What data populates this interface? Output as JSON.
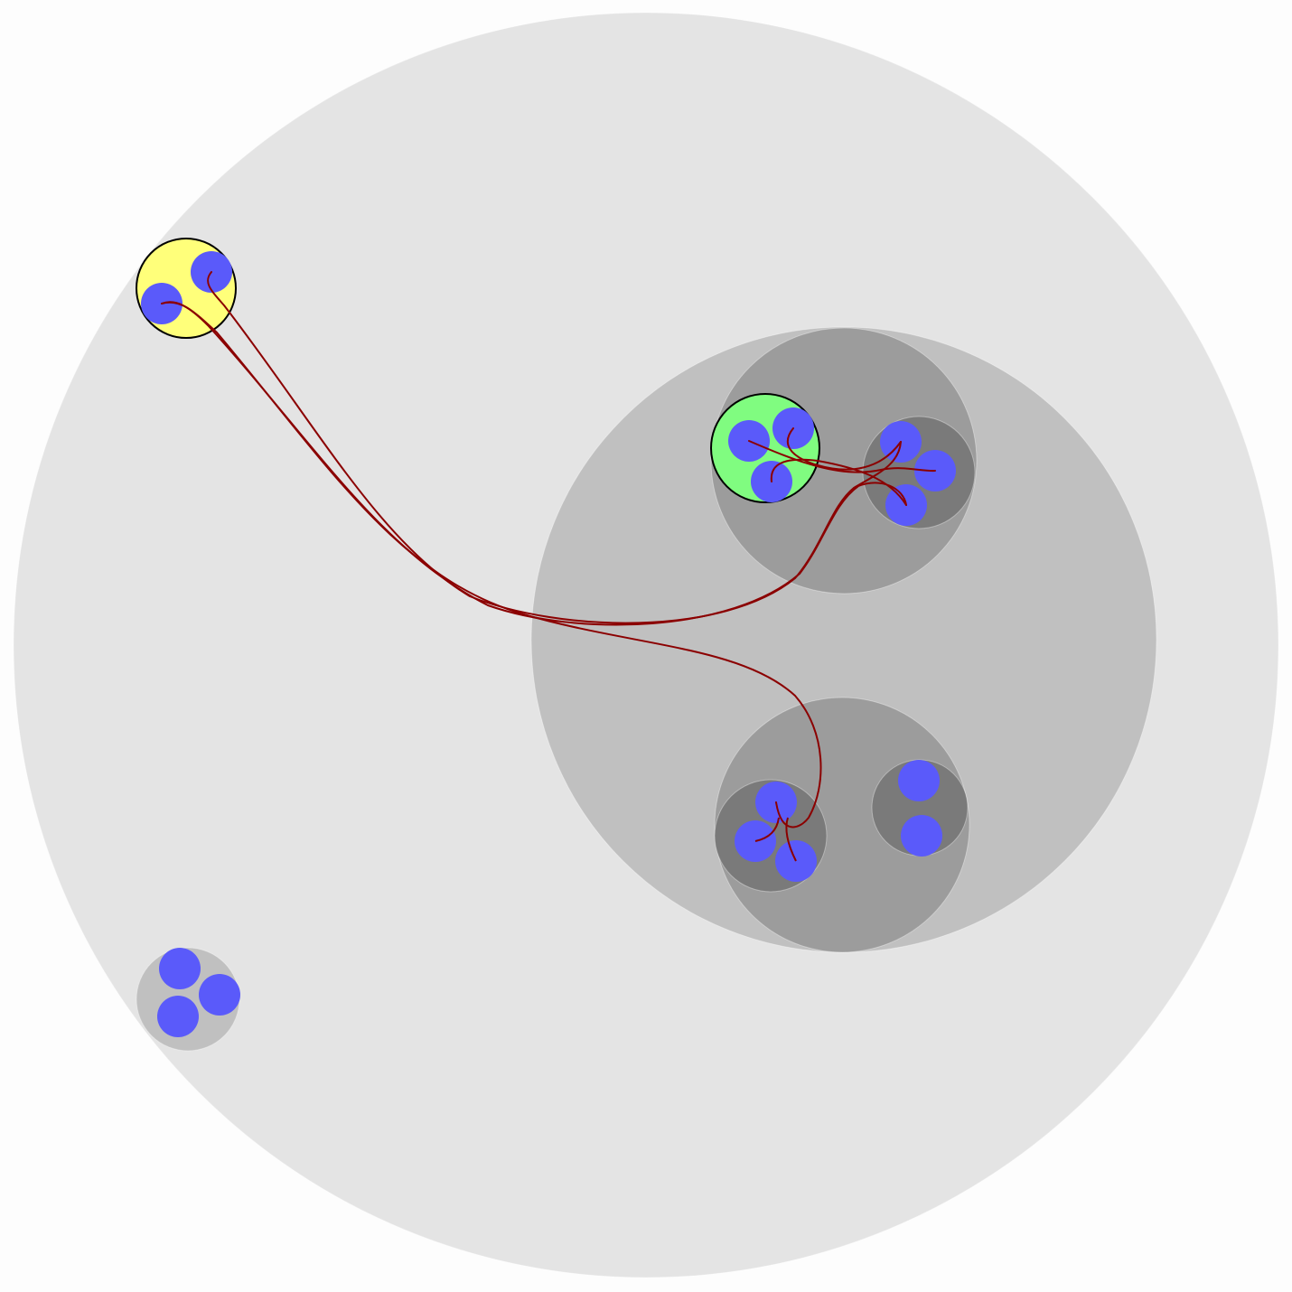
{
  "colors": {
    "background": "#fdfdfd",
    "root_fill": "#e4e4e4",
    "level1_fill": "#c0c0c0",
    "level2_fill": "#9c9c9c",
    "level3_fill": "#7a7a7a",
    "leaf_fill": "#5a5afa",
    "source_fill": "#ffff7a",
    "target_fill": "#80fc80",
    "edge_color": "#8b0000",
    "highlight_stroke": "#000000"
  },
  "groups": [
    {
      "id": "root",
      "level": 0
    },
    {
      "id": "cluster-large",
      "level": 1
    },
    {
      "id": "cluster-upper",
      "level": 2
    },
    {
      "id": "cluster-lower",
      "level": 2
    },
    {
      "id": "group-source",
      "level": 1,
      "highlight": "source"
    },
    {
      "id": "group-lower-left",
      "level": 1
    },
    {
      "id": "group-target",
      "level": 3,
      "highlight": "target"
    },
    {
      "id": "group-upper-right",
      "level": 3
    },
    {
      "id": "group-lower-inner-left",
      "level": 3
    },
    {
      "id": "group-lower-inner-right",
      "level": 3
    }
  ],
  "leaf_counts": {
    "group-source": 2,
    "group-lower-left": 3,
    "group-target": 3,
    "group-upper-right": 3,
    "group-lower-inner-left": 3,
    "group-lower-inner-right": 2
  },
  "edges": [
    {
      "from": "group-source",
      "to": "group-upper-right"
    },
    {
      "from": "group-source",
      "to": "group-upper-right"
    },
    {
      "from": "group-source",
      "to": "group-lower-inner-left"
    },
    {
      "from": "group-target",
      "to": "group-upper-right"
    },
    {
      "from": "group-target",
      "to": "group-upper-right"
    },
    {
      "from": "group-target",
      "to": "group-upper-right"
    }
  ]
}
